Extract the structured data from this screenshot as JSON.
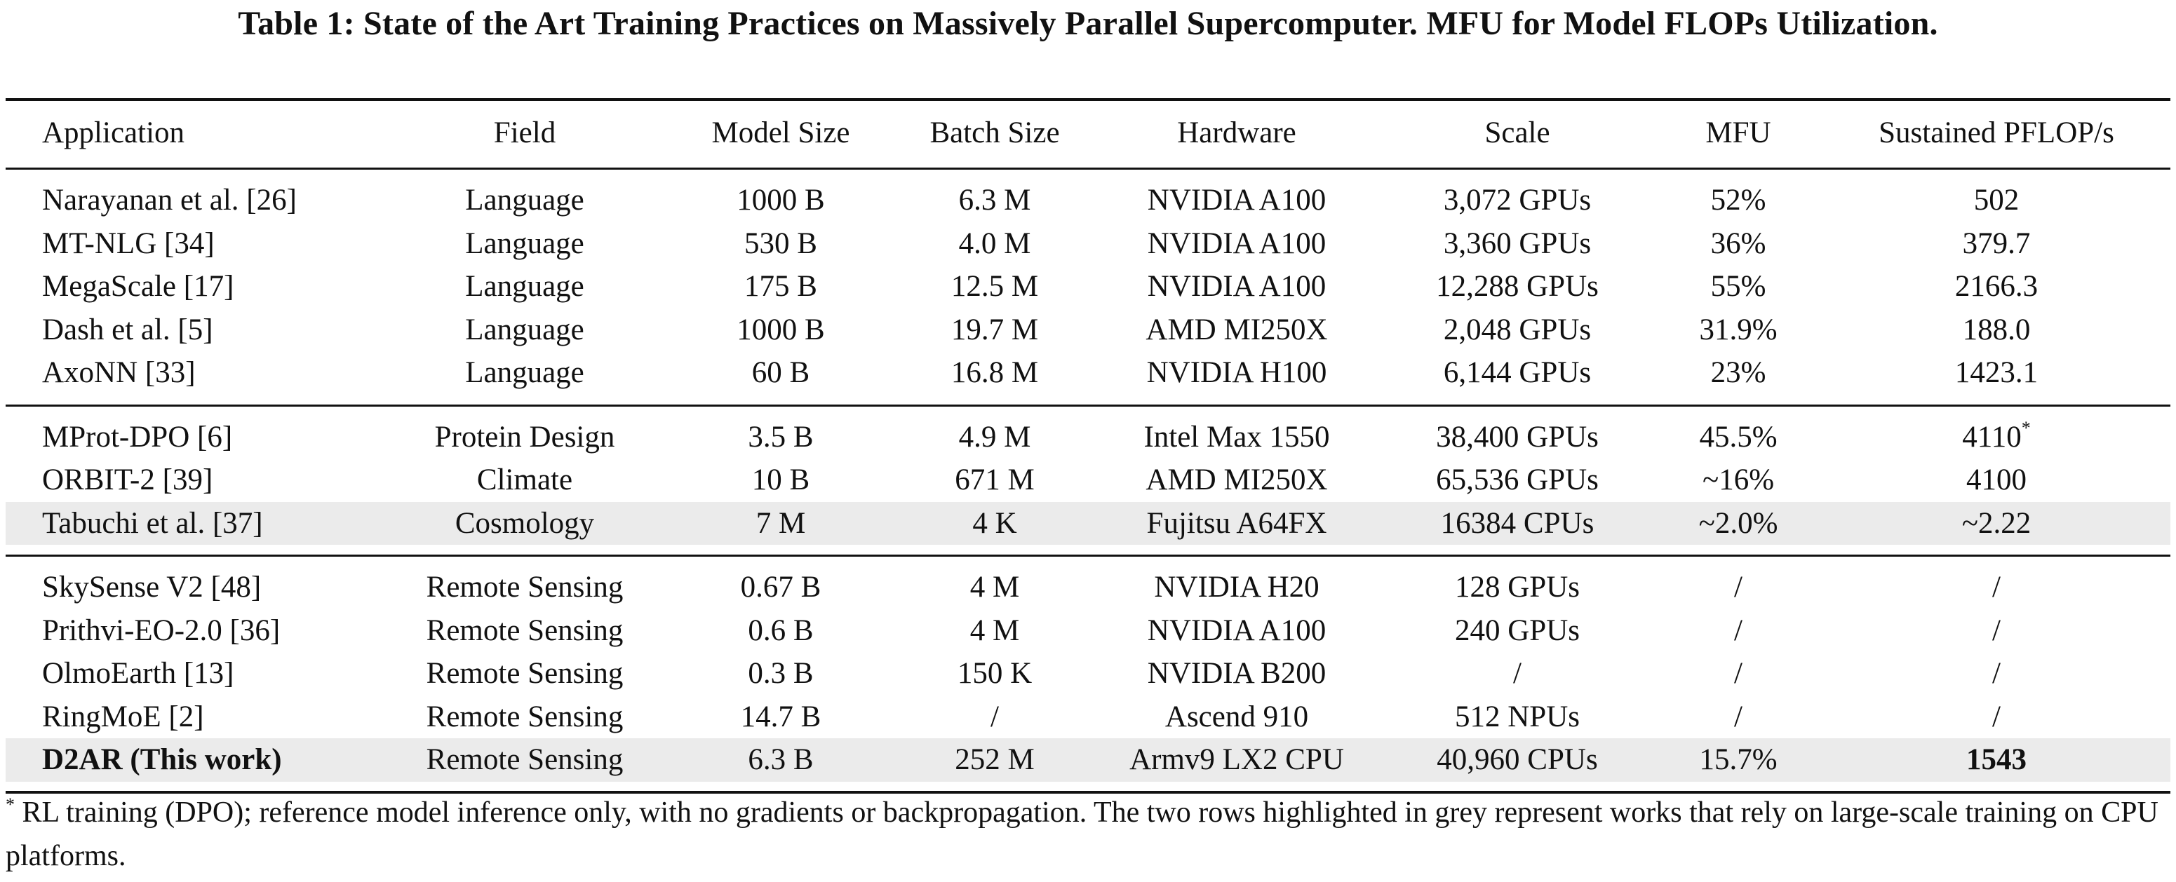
{
  "caption": "Table 1: State of the Art Training Practices on Massively Parallel Supercomputer. MFU for Model FLOPs Utilization.",
  "columns": [
    "Application",
    "Field",
    "Model Size",
    "Batch Size",
    "Hardware",
    "Scale",
    "MFU",
    "Sustained PFLOP/s"
  ],
  "groups": [
    [
      {
        "application": "Narayanan et al. [26]",
        "field": "Language",
        "model_size": "1000 B",
        "batch_size": "6.3 M",
        "hardware": "NVIDIA A100",
        "scale": "3,072 GPUs",
        "mfu": "52%",
        "pflops": "502"
      },
      {
        "application": "MT-NLG [34]",
        "field": "Language",
        "model_size": "530 B",
        "batch_size": "4.0 M",
        "hardware": "NVIDIA A100",
        "scale": "3,360 GPUs",
        "mfu": "36%",
        "pflops": "379.7"
      },
      {
        "application": "MegaScale [17]",
        "field": "Language",
        "model_size": "175 B",
        "batch_size": "12.5 M",
        "hardware": "NVIDIA A100",
        "scale": "12,288 GPUs",
        "mfu": "55%",
        "pflops": "2166.3"
      },
      {
        "application": "Dash et al. [5]",
        "field": "Language",
        "model_size": "1000 B",
        "batch_size": "19.7 M",
        "hardware": "AMD MI250X",
        "scale": "2,048 GPUs",
        "mfu": "31.9%",
        "pflops": "188.0"
      },
      {
        "application": "AxoNN [33]",
        "field": "Language",
        "model_size": "60 B",
        "batch_size": "16.8 M",
        "hardware": "NVIDIA H100",
        "scale": "6,144 GPUs",
        "mfu": "23%",
        "pflops": "1423.1"
      }
    ],
    [
      {
        "application": "MProt-DPO [6]",
        "field": "Protein Design",
        "model_size": "3.5 B",
        "batch_size": "4.9 M",
        "hardware": "Intel Max 1550",
        "scale": "38,400 GPUs",
        "mfu": "45.5%",
        "pflops": "4110",
        "pflops_mark": "*"
      },
      {
        "application": "ORBIT-2 [39]",
        "field": "Climate",
        "model_size": "10 B",
        "batch_size": "671 M",
        "hardware": "AMD MI250X",
        "scale": "65,536 GPUs",
        "mfu": "~16%",
        "pflops": "4100"
      },
      {
        "application": "Tabuchi et al. [37]",
        "field": "Cosmology",
        "model_size": "7 M",
        "batch_size": "4 K",
        "hardware": "Fujitsu A64FX",
        "scale": "16384 CPUs",
        "mfu": "~2.0%",
        "pflops": "~2.22",
        "highlight": true
      }
    ],
    [
      {
        "application": "SkySense V2 [48]",
        "field": "Remote Sensing",
        "model_size": "0.67 B",
        "batch_size": "4 M",
        "hardware": "NVIDIA H20",
        "scale": "128 GPUs",
        "mfu": "/",
        "pflops": "/"
      },
      {
        "application": "Prithvi-EO-2.0 [36]",
        "field": "Remote Sensing",
        "model_size": "0.6 B",
        "batch_size": "4 M",
        "hardware": "NVIDIA A100",
        "scale": "240 GPUs",
        "mfu": "/",
        "pflops": "/"
      },
      {
        "application": "OlmoEarth [13]",
        "field": "Remote Sensing",
        "model_size": "0.3 B",
        "batch_size": "150 K",
        "hardware": "NVIDIA B200",
        "scale": "/",
        "mfu": "/",
        "pflops": "/"
      },
      {
        "application": "RingMoE [2]",
        "field": "Remote Sensing",
        "model_size": "14.7 B",
        "batch_size": "/",
        "hardware": "Ascend 910",
        "scale": "512 NPUs",
        "mfu": "/",
        "pflops": "/"
      },
      {
        "application": "D2AR (This work)",
        "field": "Remote Sensing",
        "model_size": "6.3 B",
        "batch_size": "252 M",
        "hardware": "Armv9 LX2 CPU",
        "scale": "40,960 CPUs",
        "mfu": "15.7%",
        "pflops": "1543",
        "highlight": true,
        "bold_application": true,
        "bold_pflops": true
      }
    ]
  ],
  "footnote": {
    "mark": "*",
    "text": " RL training (DPO); reference model inference only, with no gradients or backpropagation. The two rows highlighted in grey represent works that rely on large-scale training on CPU platforms."
  }
}
